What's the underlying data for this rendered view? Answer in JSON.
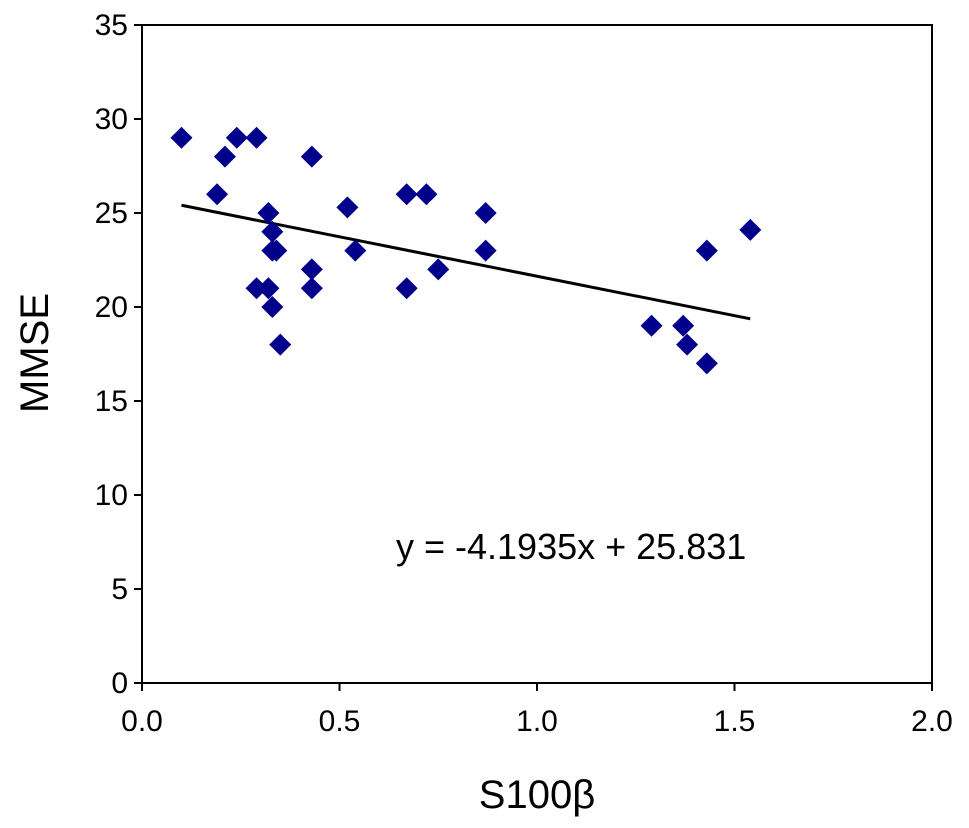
{
  "chart_data": {
    "type": "scatter",
    "title": "",
    "xlabel": "S100β",
    "ylabel": "MMSE",
    "xlim": [
      0,
      2
    ],
    "ylim": [
      0,
      35
    ],
    "x_ticks": [
      "0.0",
      "0.5",
      "1.0",
      "1.5",
      "2.0"
    ],
    "y_ticks": [
      "0",
      "5",
      "10",
      "15",
      "20",
      "25",
      "30",
      "35"
    ],
    "grid": false,
    "legend": "none",
    "marker": "diamond",
    "marker_color": "#00008b",
    "series": [
      {
        "points": [
          {
            "x": 0.1,
            "y": 29
          },
          {
            "x": 0.19,
            "y": 26
          },
          {
            "x": 0.21,
            "y": 28
          },
          {
            "x": 0.24,
            "y": 29
          },
          {
            "x": 0.29,
            "y": 29
          },
          {
            "x": 0.29,
            "y": 21
          },
          {
            "x": 0.32,
            "y": 25
          },
          {
            "x": 0.32,
            "y": 21
          },
          {
            "x": 0.33,
            "y": 20
          },
          {
            "x": 0.33,
            "y": 24
          },
          {
            "x": 0.33,
            "y": 23
          },
          {
            "x": 0.34,
            "y": 23
          },
          {
            "x": 0.35,
            "y": 18
          },
          {
            "x": 0.43,
            "y": 28
          },
          {
            "x": 0.43,
            "y": 22
          },
          {
            "x": 0.43,
            "y": 21
          },
          {
            "x": 0.52,
            "y": 25.3
          },
          {
            "x": 0.54,
            "y": 23
          },
          {
            "x": 0.67,
            "y": 26
          },
          {
            "x": 0.67,
            "y": 21
          },
          {
            "x": 0.72,
            "y": 26
          },
          {
            "x": 0.75,
            "y": 22
          },
          {
            "x": 0.87,
            "y": 25
          },
          {
            "x": 0.87,
            "y": 23
          },
          {
            "x": 1.29,
            "y": 19
          },
          {
            "x": 1.37,
            "y": 19
          },
          {
            "x": 1.38,
            "y": 18
          },
          {
            "x": 1.43,
            "y": 23
          },
          {
            "x": 1.43,
            "y": 17
          },
          {
            "x": 1.54,
            "y": 24.1
          }
        ]
      }
    ],
    "trendline": {
      "slope": -4.1935,
      "intercept": 25.831,
      "x_range": [
        0.1,
        1.54
      ],
      "color": "#000000"
    },
    "annotation": "y = -4.1935x + 25.831"
  }
}
